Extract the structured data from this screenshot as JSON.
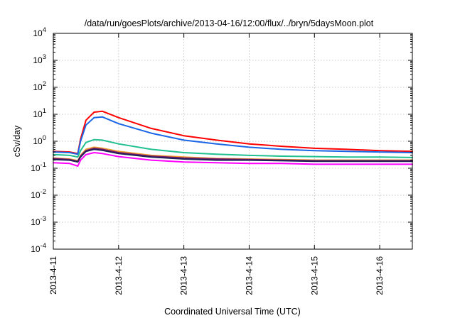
{
  "chart_data": {
    "type": "line",
    "title": "/data/run/goesPlots/archive/2013-04-16/12:00/flux/../bryn/5daysMoon.plot",
    "xlabel": "Coordinated Universal Time (UTC)",
    "ylabel": "cSv/day",
    "xlim": [
      "2013-04-11",
      "2013-04-16T12:00"
    ],
    "ylim": [
      0.0001,
      10000
    ],
    "yscale": "log",
    "grid": true,
    "x_ticks": [
      "2013-4-11",
      "2013-4-12",
      "2013-4-13",
      "2013-4-14",
      "2013-4-15",
      "2013-4-16"
    ],
    "y_ticks": [
      {
        "base": "10",
        "exp": "-4"
      },
      {
        "base": "10",
        "exp": "-3"
      },
      {
        "base": "10",
        "exp": "-2"
      },
      {
        "base": "10",
        "exp": "-1"
      },
      {
        "base": "10",
        "exp": "0"
      },
      {
        "base": "10",
        "exp": "1"
      },
      {
        "base": "10",
        "exp": "2"
      },
      {
        "base": "10",
        "exp": "3"
      },
      {
        "base": "10",
        "exp": "4"
      }
    ],
    "x": [
      "2013-04-11T00:00",
      "2013-04-11T06:00",
      "2013-04-11T09:00",
      "2013-04-11T10:00",
      "2013-04-11T12:00",
      "2013-04-11T15:00",
      "2013-04-11T18:00",
      "2013-04-12T00:00",
      "2013-04-12T12:00",
      "2013-04-13T00:00",
      "2013-04-13T12:00",
      "2013-04-14T00:00",
      "2013-04-14T12:00",
      "2013-04-15T00:00",
      "2013-04-15T12:00",
      "2013-04-16T00:00",
      "2013-04-16T12:00"
    ],
    "series": [
      {
        "color": "#ff0000",
        "values": [
          0.42,
          0.4,
          0.35,
          1.2,
          6.0,
          12.0,
          13.0,
          7.5,
          3.0,
          1.6,
          1.1,
          0.8,
          0.65,
          0.55,
          0.5,
          0.45,
          0.42
        ]
      },
      {
        "color": "#1a66e6",
        "values": [
          0.4,
          0.38,
          0.33,
          1.0,
          4.0,
          7.5,
          8.0,
          4.5,
          2.0,
          1.1,
          0.8,
          0.6,
          0.5,
          0.45,
          0.42,
          0.4,
          0.38
        ]
      },
      {
        "color": "#20c090",
        "values": [
          0.32,
          0.3,
          0.26,
          0.45,
          0.9,
          1.15,
          1.1,
          0.8,
          0.5,
          0.38,
          0.33,
          0.3,
          0.28,
          0.27,
          0.26,
          0.26,
          0.25
        ]
      },
      {
        "color": "#f0a030",
        "values": [
          0.24,
          0.22,
          0.19,
          0.3,
          0.5,
          0.6,
          0.55,
          0.42,
          0.3,
          0.26,
          0.23,
          0.22,
          0.21,
          0.2,
          0.2,
          0.2,
          0.2
        ]
      },
      {
        "color": "#7a1a6a",
        "values": [
          0.23,
          0.21,
          0.18,
          0.28,
          0.45,
          0.55,
          0.5,
          0.38,
          0.28,
          0.24,
          0.22,
          0.21,
          0.2,
          0.19,
          0.19,
          0.19,
          0.19
        ]
      },
      {
        "color": "#20205a",
        "values": [
          0.21,
          0.2,
          0.17,
          0.26,
          0.42,
          0.5,
          0.46,
          0.35,
          0.26,
          0.22,
          0.2,
          0.2,
          0.19,
          0.18,
          0.18,
          0.18,
          0.18
        ]
      },
      {
        "color": "#ff00ff",
        "values": [
          0.16,
          0.15,
          0.12,
          0.2,
          0.32,
          0.38,
          0.35,
          0.27,
          0.2,
          0.17,
          0.16,
          0.15,
          0.15,
          0.14,
          0.14,
          0.14,
          0.14
        ]
      }
    ]
  }
}
